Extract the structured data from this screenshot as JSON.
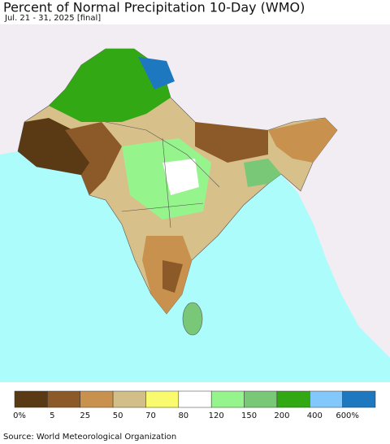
{
  "header": {
    "title": "Percent of Normal Precipitation 10-Day (WMO)",
    "subtitle": "Jul. 21 - 31, 2025 [final]"
  },
  "legend": {
    "labels": [
      "0%",
      "5",
      "25",
      "50",
      "70",
      "80",
      "120",
      "150",
      "200",
      "400",
      "600%"
    ],
    "colors": [
      "#5a3a14",
      "#8c5a28",
      "#c8924e",
      "#d2be88",
      "#fafa6e",
      "#ffffff",
      "#96f48c",
      "#78c878",
      "#32a814",
      "#82c8fa",
      "#1e78c0"
    ]
  },
  "footer": {
    "source": "Source: World Meteorological Organization"
  }
}
